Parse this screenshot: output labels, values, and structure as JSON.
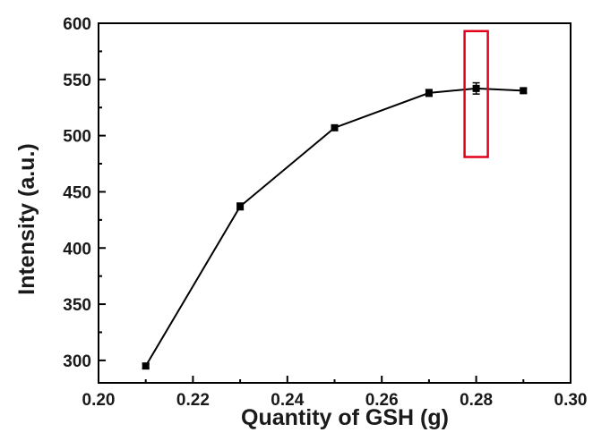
{
  "chart_data": {
    "type": "line",
    "xlabel": "Quantity of GSH (g)",
    "ylabel": "Intensity (a.u.)",
    "xlim": [
      0.2,
      0.3
    ],
    "ylim": [
      280,
      600
    ],
    "xticks": [
      "0.20",
      "0.22",
      "0.24",
      "0.26",
      "0.28",
      "0.30"
    ],
    "xtick_values": [
      0.2,
      0.22,
      0.24,
      0.26,
      0.28,
      0.3
    ],
    "yticks": [
      "300",
      "350",
      "400",
      "450",
      "500",
      "550",
      "600"
    ],
    "ytick_values": [
      300,
      350,
      400,
      450,
      500,
      550,
      600
    ],
    "grid": false,
    "legend": "none",
    "series": [
      {
        "x": [
          0.21,
          0.23,
          0.25,
          0.27,
          0.28,
          0.29
        ],
        "y": [
          295,
          437,
          507,
          538,
          542,
          540
        ],
        "error": [
          2,
          3,
          2,
          3,
          5,
          2
        ],
        "color": "#000000",
        "marker": "square"
      }
    ],
    "highlight": {
      "x": 0.28,
      "y_range": [
        481,
        593
      ],
      "color": "#e0001b"
    }
  }
}
